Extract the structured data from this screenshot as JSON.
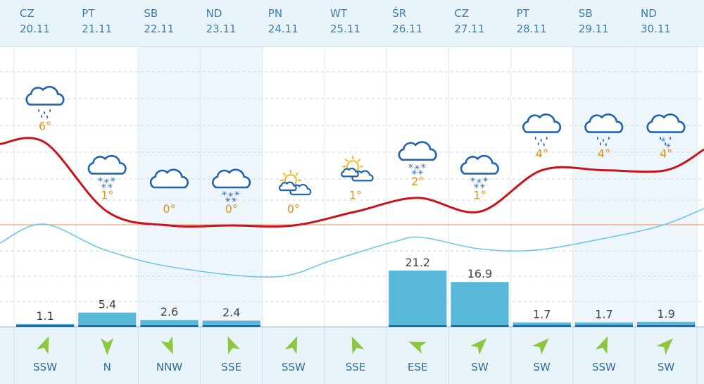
{
  "days": [
    {
      "day": "CZ",
      "date": "20.11",
      "weekend": false,
      "icon": "cloud-rain-icon",
      "temp_label": "6°",
      "precip_label": "1.1",
      "wind_dir": "SSW"
    },
    {
      "day": "PT",
      "date": "21.11",
      "weekend": false,
      "icon": "cloud-snow-icon",
      "temp_label": "1°",
      "precip_label": "5.4",
      "wind_dir": "N"
    },
    {
      "day": "SB",
      "date": "22.11",
      "weekend": true,
      "icon": "cloud-icon",
      "temp_label": "0°",
      "precip_label": "2.6",
      "wind_dir": "NNW"
    },
    {
      "day": "ND",
      "date": "23.11",
      "weekend": true,
      "icon": "cloud-snow-icon",
      "temp_label": "0°",
      "precip_label": "2.4",
      "wind_dir": "SSE"
    },
    {
      "day": "PN",
      "date": "24.11",
      "weekend": false,
      "icon": "sun-cloud-icon",
      "temp_label": "0°",
      "precip_label": "",
      "wind_dir": "SSW"
    },
    {
      "day": "WT",
      "date": "25.11",
      "weekend": false,
      "icon": "sun-cloud-icon",
      "temp_label": "1°",
      "precip_label": "",
      "wind_dir": "SSE"
    },
    {
      "day": "ŚR",
      "date": "26.11",
      "weekend": false,
      "icon": "cloud-snow-icon",
      "temp_label": "2°",
      "precip_label": "21.2",
      "wind_dir": "ESE"
    },
    {
      "day": "CZ",
      "date": "27.11",
      "weekend": false,
      "icon": "cloud-snow-icon",
      "temp_label": "1°",
      "precip_label": "16.9",
      "wind_dir": "SW"
    },
    {
      "day": "PT",
      "date": "28.11",
      "weekend": false,
      "icon": "cloud-rain-icon",
      "temp_label": "4°",
      "precip_label": "1.7",
      "wind_dir": "SW"
    },
    {
      "day": "SB",
      "date": "29.11",
      "weekend": true,
      "icon": "cloud-rain-icon",
      "temp_label": "4°",
      "precip_label": "1.7",
      "wind_dir": "SSW"
    },
    {
      "day": "ND",
      "date": "30.11",
      "weekend": true,
      "icon": "cloud-snow-rain-icon",
      "temp_label": "4°",
      "precip_label": "1.9",
      "wind_dir": "SW"
    }
  ],
  "colors": {
    "header_bg": "#e8f3fa",
    "weekend_bg": "#eef6fb",
    "day_text": "#3a7fb0",
    "temp_line": "#c8141e",
    "temp_label": "#e8900f",
    "secondary_line": "#6ec8e8",
    "zero_line": "#f0a070",
    "bar_fill": "#5ab8da",
    "bar_dark": "#1a6fa8",
    "arrow": "#8dc63f",
    "wind_text": "#2d6e9f",
    "icon_stroke": "#1f63b5",
    "sun": "#f5b820"
  },
  "chart_data": {
    "type": "line",
    "categories": [
      "20.11",
      "21.11",
      "22.11",
      "23.11",
      "24.11",
      "25.11",
      "26.11",
      "27.11",
      "28.11",
      "29.11",
      "30.11"
    ],
    "series": [
      {
        "values": [
          6,
          1,
          0,
          0,
          0,
          1,
          2,
          1,
          4,
          4,
          4
        ]
      },
      {
        "values": [
          null,
          null,
          null,
          null,
          null,
          null,
          null,
          null,
          null,
          null,
          null
        ]
      }
    ],
    "bars": [
      {
        "values": [
          1.1,
          5.4,
          2.6,
          2.4,
          0,
          0,
          21.2,
          16.9,
          1.7,
          1.7,
          1.9
        ]
      }
    ],
    "grid": true,
    "wind_directions": [
      "SSW",
      "N",
      "NNW",
      "SSE",
      "SSW",
      "SSE",
      "ESE",
      "SW",
      "SW",
      "SSW",
      "SW"
    ]
  }
}
